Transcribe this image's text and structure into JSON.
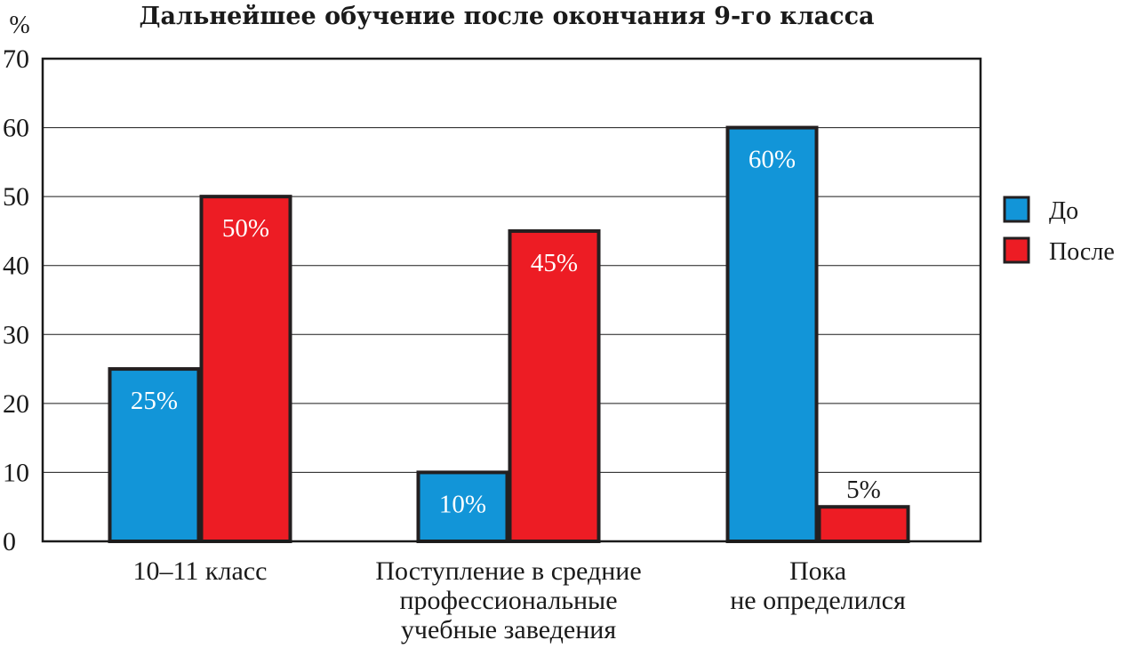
{
  "chart_data": {
    "type": "bar",
    "title": "Дальнейшее обучение после окончания 9-го класса",
    "ylabel": "%",
    "xlabel": "",
    "ylim": [
      0,
      70
    ],
    "yticks": [
      0,
      10,
      20,
      30,
      40,
      50,
      60,
      70
    ],
    "grid": true,
    "legend_position": "right",
    "categories": [
      [
        "10–11 класс"
      ],
      [
        "Поступление в средние",
        "профессиональные",
        "учебные заведения"
      ],
      [
        "Пока",
        "не определился"
      ]
    ],
    "series": [
      {
        "name": "До",
        "color": "#1295d8",
        "values": [
          25,
          10,
          60
        ],
        "labels": [
          "25%",
          "10%",
          "60%"
        ],
        "label_placement": [
          "inside",
          "inside",
          "inside"
        ]
      },
      {
        "name": "После",
        "color": "#ed1c24",
        "values": [
          50,
          45,
          5
        ],
        "labels": [
          "50%",
          "45%",
          "5%"
        ],
        "label_placement": [
          "inside",
          "inside",
          "above"
        ]
      }
    ]
  }
}
